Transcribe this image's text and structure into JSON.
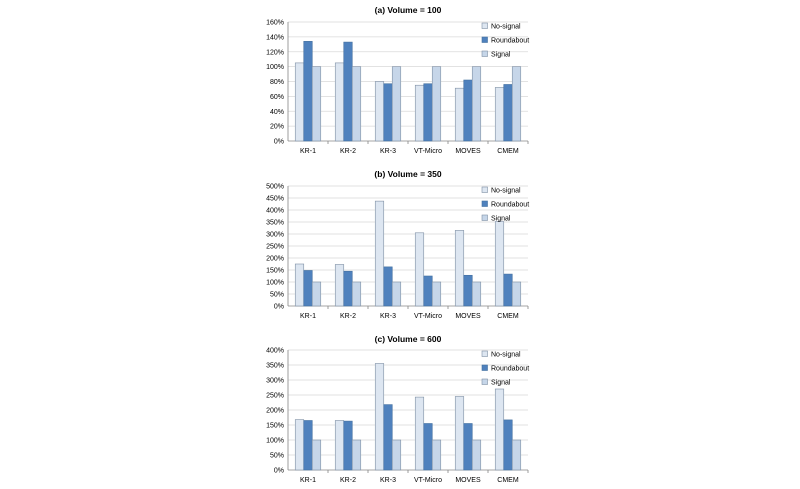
{
  "colors": {
    "no_signal": "#dde6f1",
    "roundabout": "#4f81bd",
    "signal": "#c6d6e9",
    "bar_stroke": "#7f8fa4",
    "grid": "#d9d9d9",
    "axis": "#868686",
    "text": "#000000"
  },
  "chart_data": [
    {
      "type": "bar",
      "title": "(a) Volume = 100",
      "categories": [
        "KR-1",
        "KR-2",
        "KR-3",
        "VT-Micro",
        "MOVES",
        "CMEM"
      ],
      "series": [
        {
          "name": "No-signal",
          "values": [
            105,
            105,
            80,
            75,
            71,
            72
          ]
        },
        {
          "name": "Roundabout",
          "values": [
            134,
            133,
            77,
            77,
            82,
            76
          ]
        },
        {
          "name": "Signal",
          "values": [
            100,
            100,
            100,
            100,
            100,
            100
          ]
        }
      ],
      "ylim": [
        0,
        160
      ],
      "yticks": [
        "0%",
        "20%",
        "40%",
        "60%",
        "80%",
        "100%",
        "120%",
        "140%",
        "160%"
      ],
      "ytick_step": 20,
      "grid": true,
      "legend": "top-right"
    },
    {
      "type": "bar",
      "title": "(b) Volume = 350",
      "categories": [
        "KR-1",
        "KR-2",
        "KR-3",
        "VT-Micro",
        "MOVES",
        "CMEM"
      ],
      "series": [
        {
          "name": "No-signal",
          "values": [
            175,
            173,
            437,
            305,
            315,
            352
          ]
        },
        {
          "name": "Roundabout",
          "values": [
            148,
            145,
            163,
            125,
            128,
            133
          ]
        },
        {
          "name": "Signal",
          "values": [
            100,
            100,
            100,
            100,
            100,
            100
          ]
        }
      ],
      "ylim": [
        0,
        500
      ],
      "yticks": [
        "0%",
        "50%",
        "100%",
        "150%",
        "200%",
        "250%",
        "300%",
        "350%",
        "400%",
        "450%",
        "500%"
      ],
      "ytick_step": 50,
      "grid": true,
      "legend": "top-right"
    },
    {
      "type": "bar",
      "title": "(c) Volume = 600",
      "categories": [
        "KR-1",
        "KR-2",
        "KR-3",
        "VT-Micro",
        "MOVES",
        "CMEM"
      ],
      "series": [
        {
          "name": "No-signal",
          "values": [
            168,
            165,
            355,
            243,
            245,
            270
          ]
        },
        {
          "name": "Roundabout",
          "values": [
            165,
            163,
            218,
            155,
            155,
            167
          ]
        },
        {
          "name": "Signal",
          "values": [
            100,
            100,
            100,
            100,
            100,
            100
          ]
        }
      ],
      "ylim": [
        0,
        400
      ],
      "yticks": [
        "0%",
        "50%",
        "100%",
        "150%",
        "200%",
        "250%",
        "300%",
        "350%",
        "400%"
      ],
      "ytick_step": 50,
      "grid": true,
      "legend": "top-right"
    }
  ]
}
